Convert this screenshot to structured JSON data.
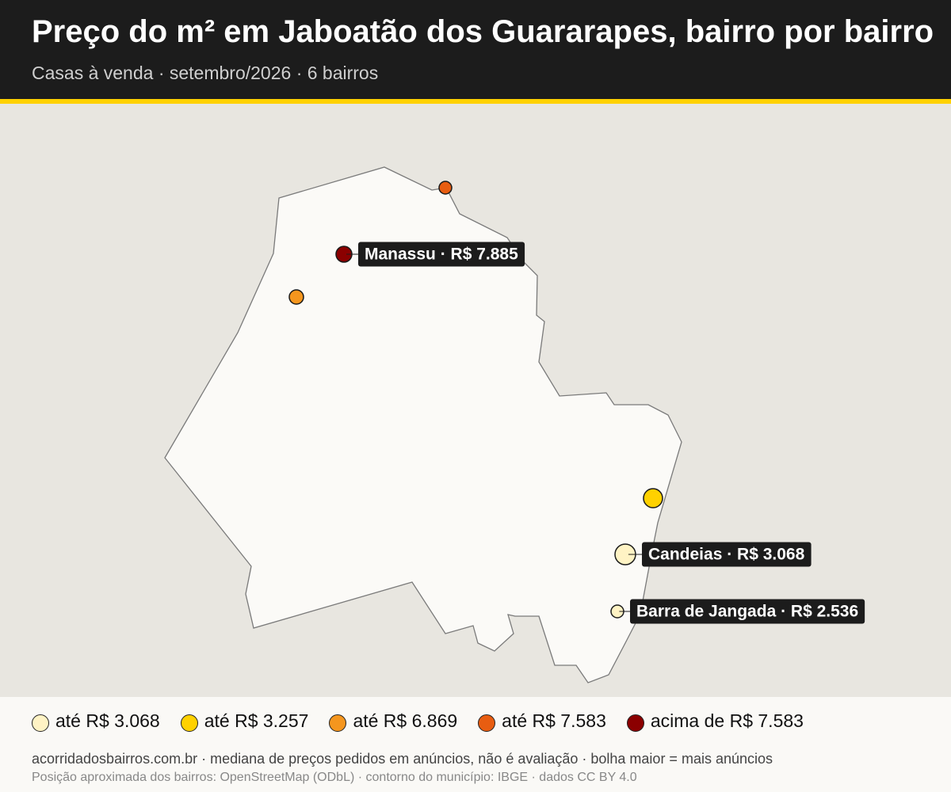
{
  "header": {
    "title": "Preço do m² em Jaboatão dos Guararapes, bairro por bairro",
    "subtitle": "Casas à venda · setembro/2026 · 6 bairros"
  },
  "points": [
    {
      "label": "Manassu · R$ 7.885",
      "value": 7885,
      "color": "#8b0000"
    },
    {
      "color": "#e85d11"
    },
    {
      "color": "#f5961e"
    },
    {
      "color": "#ffd100"
    },
    {
      "label": "Candeias · R$ 3.068",
      "value": 3068,
      "color": "#fff3c4"
    },
    {
      "label": "Barra de Jangada · R$ 2.536",
      "value": 2536,
      "color": "#fff3c4"
    }
  ],
  "legend": [
    {
      "label": "até R$ 3.068",
      "color": "#fff3c4"
    },
    {
      "label": "até R$ 3.257",
      "color": "#ffd100"
    },
    {
      "label": "até R$ 6.869",
      "color": "#f5961e"
    },
    {
      "label": "até R$ 7.583",
      "color": "#e85d11"
    },
    {
      "label": "acima de R$ 7.583",
      "color": "#8b0000"
    }
  ],
  "footer": {
    "note": "acorridadosbairros.com.br · mediana de preços pedidos em anúncios, não é avaliação · bolha maior = mais anúncios",
    "source": "Posição aproximada dos bairros: OpenStreetMap (ODbL) · contorno do município: IBGE · dados CC BY 4.0"
  }
}
